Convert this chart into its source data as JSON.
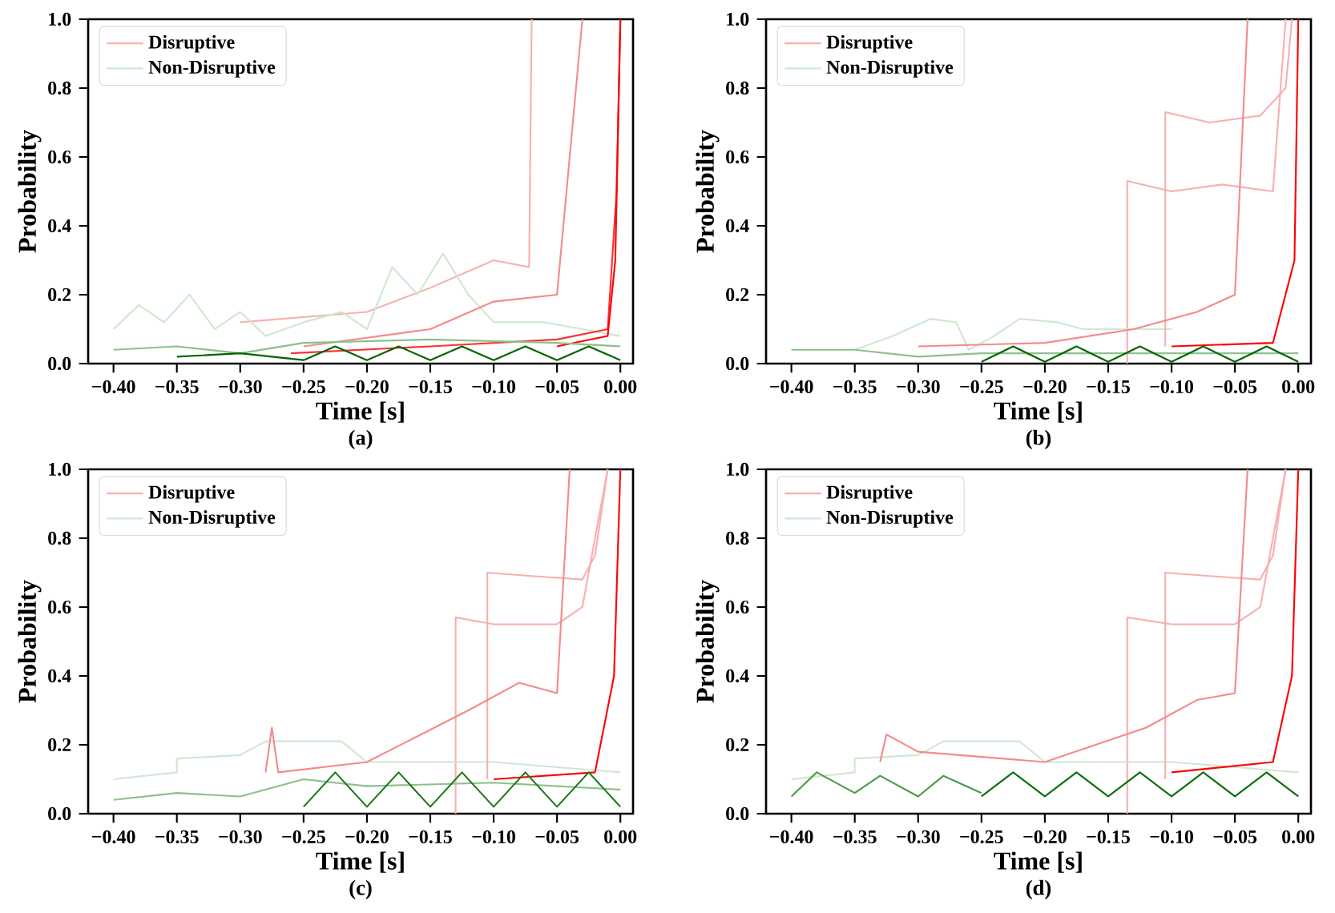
{
  "chart_data": [
    {
      "type": "line",
      "xlabel": "Time [s]",
      "ylabel": "Probability",
      "annotations": [
        "(a)"
      ],
      "xlim": [
        -0.42,
        0.01
      ],
      "ylim": [
        0,
        1
      ],
      "xticks": [
        {
          "value": -0.4,
          "label": "−0.40"
        },
        {
          "value": -0.35,
          "label": "−0.35"
        },
        {
          "value": -0.3,
          "label": "−0.30"
        },
        {
          "value": -0.25,
          "label": "−0.25"
        },
        {
          "value": -0.2,
          "label": "−0.20"
        },
        {
          "value": -0.15,
          "label": "−0.15"
        },
        {
          "value": -0.1,
          "label": "−0.10"
        },
        {
          "value": -0.05,
          "label": "−0.05"
        },
        {
          "value": 0,
          "label": "0.00"
        }
      ],
      "yticks": [
        {
          "value": 0,
          "label": "0.0"
        },
        {
          "value": 0.2,
          "label": "0.2"
        },
        {
          "value": 0.4,
          "label": "0.4"
        },
        {
          "value": 0.6,
          "label": "0.6"
        },
        {
          "value": 0.8,
          "label": "0.8"
        },
        {
          "value": 1,
          "label": "1.0"
        }
      ],
      "legend": "top left",
      "series": [
        {
          "name": "Disruptive",
          "color": "#f7b0b0",
          "x": [
            -0.3,
            -0.2,
            -0.15,
            -0.1,
            -0.072,
            -0.07
          ],
          "values": [
            0.12,
            0.15,
            0.22,
            0.3,
            0.28,
            1.0
          ]
        },
        {
          "name": "Non-Disruptive",
          "color": "#cfe8cf",
          "x": [
            -0.4,
            -0.38,
            -0.36,
            -0.34,
            -0.32,
            -0.3,
            -0.28,
            -0.25,
            -0.22,
            -0.2,
            -0.18,
            -0.16,
            -0.14,
            -0.12,
            -0.1,
            -0.06,
            -0.03,
            0
          ],
          "values": [
            0.1,
            0.17,
            0.12,
            0.2,
            0.1,
            0.15,
            0.08,
            0.12,
            0.15,
            0.1,
            0.28,
            0.2,
            0.32,
            0.2,
            0.12,
            0.12,
            0.1,
            0.08
          ]
        },
        {
          "color": "#f48a8a",
          "x": [
            -0.25,
            -0.15,
            -0.1,
            -0.05,
            -0.03
          ],
          "values": [
            0.05,
            0.1,
            0.18,
            0.2,
            1.0
          ]
        },
        {
          "color": "#ff3030",
          "x": [
            -0.26,
            -0.15,
            -0.05,
            -0.01,
            -0.003,
            0
          ],
          "values": [
            0.03,
            0.05,
            0.07,
            0.1,
            0.5,
            1.0
          ]
        },
        {
          "color": "#ff0000",
          "x": [
            -0.05,
            -0.01,
            -0.004,
            0
          ],
          "values": [
            0.05,
            0.08,
            0.3,
            1.0
          ]
        },
        {
          "color": "#8cc08c",
          "x": [
            -0.4,
            -0.35,
            -0.3,
            -0.25,
            -0.15,
            -0.05,
            0
          ],
          "values": [
            0.04,
            0.05,
            0.03,
            0.06,
            0.07,
            0.06,
            0.05
          ]
        },
        {
          "color": "#006400",
          "x": [
            -0.35,
            -0.3,
            -0.25,
            -0.225,
            -0.2,
            -0.175,
            -0.15,
            -0.125,
            -0.1,
            -0.075,
            -0.05,
            -0.025,
            0
          ],
          "values": [
            0.02,
            0.03,
            0.01,
            0.05,
            0.01,
            0.05,
            0.01,
            0.05,
            0.01,
            0.05,
            0.01,
            0.05,
            0.01
          ]
        }
      ]
    },
    {
      "type": "line",
      "xlabel": "Time [s]",
      "ylabel": "Probability",
      "annotations": [
        "(b)"
      ],
      "xlim": [
        -0.42,
        0.01
      ],
      "ylim": [
        0,
        1
      ],
      "xticks": [
        {
          "value": -0.4,
          "label": "−0.40"
        },
        {
          "value": -0.35,
          "label": "−0.35"
        },
        {
          "value": -0.3,
          "label": "−0.30"
        },
        {
          "value": -0.25,
          "label": "−0.25"
        },
        {
          "value": -0.2,
          "label": "−0.20"
        },
        {
          "value": -0.15,
          "label": "−0.15"
        },
        {
          "value": -0.1,
          "label": "−0.10"
        },
        {
          "value": -0.05,
          "label": "−0.05"
        },
        {
          "value": 0,
          "label": "0.00"
        }
      ],
      "yticks": [
        {
          "value": 0,
          "label": "0.0"
        },
        {
          "value": 0.2,
          "label": "0.2"
        },
        {
          "value": 0.4,
          "label": "0.4"
        },
        {
          "value": 0.6,
          "label": "0.6"
        },
        {
          "value": 0.8,
          "label": "0.8"
        },
        {
          "value": 1,
          "label": "1.0"
        }
      ],
      "legend": "top left",
      "series": [
        {
          "name": "Disruptive",
          "color": "#f7b0b0",
          "x": [
            -0.135,
            -0.135,
            -0.1,
            -0.06,
            -0.02,
            -0.01
          ],
          "values": [
            0.0,
            0.53,
            0.5,
            0.52,
            0.5,
            1.0
          ]
        },
        {
          "name": "Non-Disruptive",
          "color": "#cfe8cf",
          "x": [
            -0.35,
            -0.32,
            -0.29,
            -0.27,
            -0.26,
            -0.24,
            -0.22,
            -0.19,
            -0.17,
            -0.1
          ],
          "values": [
            0.04,
            0.08,
            0.13,
            0.12,
            0.04,
            0.08,
            0.13,
            0.12,
            0.1,
            0.1
          ]
        },
        {
          "color": "#f7b0b0",
          "x": [
            -0.105,
            -0.105,
            -0.07,
            -0.03,
            -0.01,
            -0.005
          ],
          "values": [
            0.05,
            0.73,
            0.7,
            0.72,
            0.8,
            1.0
          ]
        },
        {
          "color": "#f48a8a",
          "x": [
            -0.3,
            -0.2,
            -0.13,
            -0.08,
            -0.05,
            -0.04
          ],
          "values": [
            0.05,
            0.06,
            0.1,
            0.15,
            0.2,
            1.0
          ]
        },
        {
          "color": "#ff0000",
          "x": [
            -0.1,
            -0.02,
            -0.003,
            0
          ],
          "values": [
            0.05,
            0.06,
            0.3,
            1.0
          ]
        },
        {
          "color": "#8cc08c",
          "x": [
            -0.4,
            -0.35,
            -0.3,
            -0.25,
            0
          ],
          "values": [
            0.04,
            0.04,
            0.02,
            0.03,
            0.03
          ]
        },
        {
          "color": "#006400",
          "x": [
            -0.25,
            -0.225,
            -0.2,
            -0.175,
            -0.15,
            -0.125,
            -0.1,
            -0.075,
            -0.05,
            -0.025,
            0
          ],
          "values": [
            0.005,
            0.05,
            0.005,
            0.05,
            0.005,
            0.05,
            0.005,
            0.05,
            0.005,
            0.05,
            0.005
          ]
        }
      ]
    },
    {
      "type": "line",
      "xlabel": "Time [s]",
      "ylabel": "Probability",
      "annotations": [
        "(c)"
      ],
      "xlim": [
        -0.42,
        0.01
      ],
      "ylim": [
        0,
        1
      ],
      "xticks": [
        {
          "value": -0.4,
          "label": "−0.40"
        },
        {
          "value": -0.35,
          "label": "−0.35"
        },
        {
          "value": -0.3,
          "label": "−0.30"
        },
        {
          "value": -0.25,
          "label": "−0.25"
        },
        {
          "value": -0.2,
          "label": "−0.20"
        },
        {
          "value": -0.15,
          "label": "−0.15"
        },
        {
          "value": -0.1,
          "label": "−0.10"
        },
        {
          "value": -0.05,
          "label": "−0.05"
        },
        {
          "value": 0,
          "label": "0.00"
        }
      ],
      "yticks": [
        {
          "value": 0,
          "label": "0.0"
        },
        {
          "value": 0.2,
          "label": "0.2"
        },
        {
          "value": 0.4,
          "label": "0.4"
        },
        {
          "value": 0.6,
          "label": "0.6"
        },
        {
          "value": 0.8,
          "label": "0.8"
        },
        {
          "value": 1,
          "label": "1.0"
        }
      ],
      "legend": "top left",
      "series": [
        {
          "name": "Disruptive",
          "color": "#f7b0b0",
          "x": [
            -0.13,
            -0.13,
            -0.1,
            -0.05,
            -0.03,
            -0.01
          ],
          "values": [
            0.0,
            0.57,
            0.55,
            0.55,
            0.6,
            1.0
          ]
        },
        {
          "name": "Non-Disruptive",
          "color": "#cfe8cf",
          "x": [
            -0.4,
            -0.35,
            -0.35,
            -0.3,
            -0.28,
            -0.22,
            -0.2,
            -0.1,
            0
          ],
          "values": [
            0.1,
            0.12,
            0.16,
            0.17,
            0.21,
            0.21,
            0.15,
            0.15,
            0.12
          ]
        },
        {
          "color": "#f7b0b0",
          "x": [
            -0.105,
            -0.105,
            -0.07,
            -0.03,
            -0.02,
            -0.01
          ],
          "values": [
            0.1,
            0.7,
            0.69,
            0.68,
            0.75,
            1.0
          ]
        },
        {
          "color": "#f48a8a",
          "x": [
            -0.28,
            -0.275,
            -0.27,
            -0.2,
            -0.12,
            -0.08,
            -0.05,
            -0.04
          ],
          "values": [
            0.12,
            0.25,
            0.12,
            0.15,
            0.3,
            0.38,
            0.35,
            1.0
          ]
        },
        {
          "color": "#ff0000",
          "x": [
            -0.1,
            -0.02,
            -0.005,
            0
          ],
          "values": [
            0.1,
            0.12,
            0.4,
            1.0
          ]
        },
        {
          "color": "#8cc08c",
          "x": [
            -0.4,
            -0.35,
            -0.3,
            -0.25,
            -0.2,
            -0.1,
            0
          ],
          "values": [
            0.04,
            0.06,
            0.05,
            0.1,
            0.08,
            0.09,
            0.07
          ]
        },
        {
          "color": "#1a7a1a",
          "x": [
            -0.25,
            -0.225,
            -0.2,
            -0.175,
            -0.15,
            -0.125,
            -0.1,
            -0.075,
            -0.05,
            -0.025,
            0
          ],
          "values": [
            0.02,
            0.12,
            0.02,
            0.12,
            0.02,
            0.12,
            0.02,
            0.12,
            0.02,
            0.12,
            0.02
          ]
        }
      ]
    },
    {
      "type": "line",
      "xlabel": "Time [s]",
      "ylabel": "Probability",
      "annotations": [
        "(d)"
      ],
      "xlim": [
        -0.42,
        0.01
      ],
      "ylim": [
        0,
        1
      ],
      "xticks": [
        {
          "value": -0.4,
          "label": "−0.40"
        },
        {
          "value": -0.35,
          "label": "−0.35"
        },
        {
          "value": -0.3,
          "label": "−0.30"
        },
        {
          "value": -0.25,
          "label": "−0.25"
        },
        {
          "value": -0.2,
          "label": "−0.20"
        },
        {
          "value": -0.15,
          "label": "−0.15"
        },
        {
          "value": -0.1,
          "label": "−0.10"
        },
        {
          "value": -0.05,
          "label": "−0.05"
        },
        {
          "value": 0,
          "label": "0.00"
        }
      ],
      "yticks": [
        {
          "value": 0,
          "label": "0.0"
        },
        {
          "value": 0.2,
          "label": "0.2"
        },
        {
          "value": 0.4,
          "label": "0.4"
        },
        {
          "value": 0.6,
          "label": "0.6"
        },
        {
          "value": 0.8,
          "label": "0.8"
        },
        {
          "value": 1,
          "label": "1.0"
        }
      ],
      "legend": "top left",
      "series": [
        {
          "name": "Disruptive",
          "color": "#f7b0b0",
          "x": [
            -0.135,
            -0.135,
            -0.1,
            -0.05,
            -0.03,
            -0.01
          ],
          "values": [
            0.0,
            0.57,
            0.55,
            0.55,
            0.6,
            1.0
          ]
        },
        {
          "name": "Non-Disruptive",
          "color": "#cfe8cf",
          "x": [
            -0.4,
            -0.35,
            -0.35,
            -0.3,
            -0.28,
            -0.22,
            -0.2,
            -0.1,
            0
          ],
          "values": [
            0.1,
            0.12,
            0.16,
            0.17,
            0.21,
            0.21,
            0.15,
            0.15,
            0.12
          ]
        },
        {
          "color": "#f7b0b0",
          "x": [
            -0.105,
            -0.105,
            -0.07,
            -0.03,
            -0.02,
            -0.01
          ],
          "values": [
            0.1,
            0.7,
            0.69,
            0.68,
            0.75,
            1.0
          ]
        },
        {
          "color": "#f48a8a",
          "x": [
            -0.33,
            -0.325,
            -0.3,
            -0.2,
            -0.12,
            -0.08,
            -0.05,
            -0.04
          ],
          "values": [
            0.15,
            0.23,
            0.18,
            0.15,
            0.25,
            0.33,
            0.35,
            1.0
          ]
        },
        {
          "color": "#ff0000",
          "x": [
            -0.1,
            -0.02,
            -0.005,
            0
          ],
          "values": [
            0.12,
            0.15,
            0.4,
            1.0
          ]
        },
        {
          "color": "#4c9a4c",
          "x": [
            -0.4,
            -0.38,
            -0.35,
            -0.33,
            -0.3,
            -0.28,
            -0.25
          ],
          "values": [
            0.05,
            0.12,
            0.06,
            0.11,
            0.05,
            0.11,
            0.06
          ]
        },
        {
          "color": "#0a6e0a",
          "x": [
            -0.25,
            -0.225,
            -0.2,
            -0.175,
            -0.15,
            -0.125,
            -0.1,
            -0.075,
            -0.05,
            -0.025,
            0
          ],
          "values": [
            0.05,
            0.12,
            0.05,
            0.12,
            0.05,
            0.12,
            0.05,
            0.12,
            0.05,
            0.12,
            0.05
          ]
        }
      ]
    }
  ]
}
